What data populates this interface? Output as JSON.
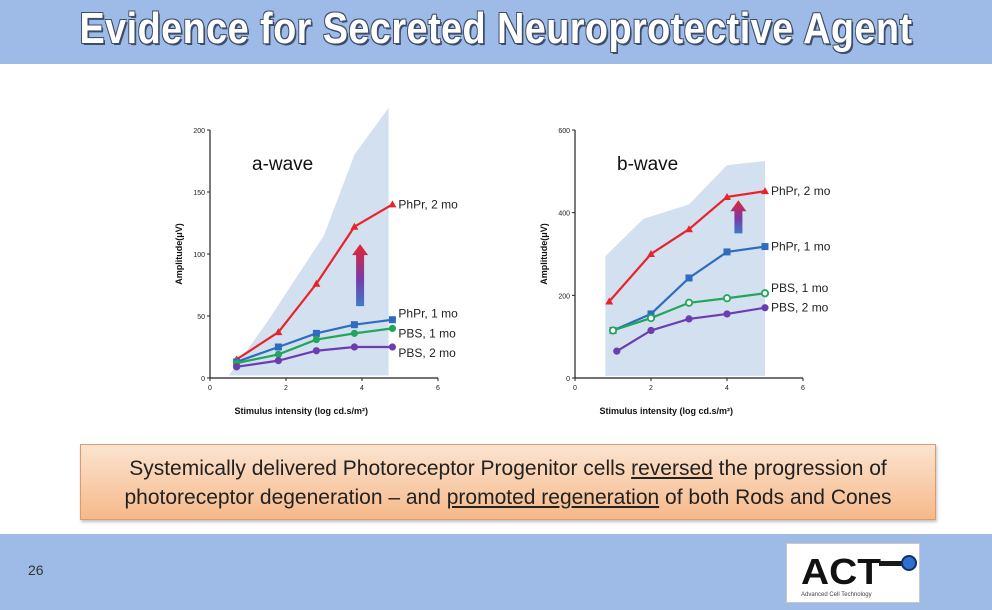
{
  "slide": {
    "title": "Evidence for Secreted Neuroprotective Agent",
    "page_number": "26",
    "caption_parts": [
      {
        "text": "Systemically delivered Photoreceptor Progenitor cells ",
        "underline": false
      },
      {
        "text": "reversed",
        "underline": true
      },
      {
        "text": " the progression of photoreceptor degeneration – and ",
        "underline": false
      },
      {
        "text": "promoted regeneration",
        "underline": true
      },
      {
        "text": " of both Rods and Cones",
        "underline": false
      }
    ],
    "logo": {
      "text": "ACT",
      "subtext": "Advanced Cell Technology"
    }
  },
  "colors": {
    "PhPr, 2 mo": "#e8232a",
    "PhPr, 1 mo": "#2e6cc0",
    "PBS, 1 mo": "#22a65a",
    "PBS, 2 mo": "#6a3db0",
    "band": "#d3e0f0"
  },
  "chart_data": [
    {
      "type": "line",
      "title": "a-wave",
      "xlabel": "Stimulus intensity (log cd.s/m²)",
      "ylabel": "Amplitude(μV)",
      "xlim": [
        0,
        6
      ],
      "ylim": [
        0,
        200
      ],
      "xticks": [
        0,
        2,
        4,
        6
      ],
      "yticks": [
        0,
        50,
        100,
        150,
        200
      ],
      "band_x": [
        0.5,
        1.5,
        3.0,
        3.8,
        4.7,
        4.7,
        3.8,
        3.0,
        1.5,
        0.5
      ],
      "band_y": [
        2,
        45,
        115,
        180,
        218,
        2,
        2,
        2,
        2,
        2
      ],
      "series": [
        {
          "name": "PhPr, 2 mo",
          "x": [
            0.7,
            1.8,
            2.8,
            3.8,
            4.8
          ],
          "y": [
            15,
            37,
            76,
            122,
            140
          ],
          "marker": "triangle"
        },
        {
          "name": "PhPr, 1 mo",
          "x": [
            0.7,
            1.8,
            2.8,
            3.8,
            4.8
          ],
          "y": [
            13,
            25,
            36,
            43,
            47
          ],
          "marker": "square"
        },
        {
          "name": "PBS, 1 mo",
          "x": [
            0.7,
            1.8,
            2.8,
            3.8,
            4.8
          ],
          "y": [
            12,
            19,
            31,
            36,
            40
          ],
          "marker": "circle"
        },
        {
          "name": "PBS, 2 mo",
          "x": [
            0.7,
            1.8,
            2.8,
            3.8,
            4.8
          ],
          "y": [
            9,
            14,
            22,
            25,
            25
          ],
          "marker": "circle"
        }
      ],
      "legend_labels": [
        "PhPr, 2 mo",
        "PhPr, 1 mo",
        "PBS, 1 mo",
        "PBS, 2 mo"
      ]
    },
    {
      "type": "line",
      "title": "b-wave",
      "xlabel": "Stimulus intensity (log cd.s/m²)",
      "ylabel": "Amplitude(μV)",
      "xlim": [
        0,
        6
      ],
      "ylim": [
        0,
        600
      ],
      "xticks": [
        0,
        2,
        4,
        6
      ],
      "yticks": [
        0,
        200,
        400,
        600
      ],
      "band_x": [
        0.8,
        1.8,
        3.0,
        4.0,
        5.0,
        5.0,
        4.0,
        3.0,
        1.8,
        0.8
      ],
      "band_y": [
        295,
        385,
        420,
        515,
        525,
        5,
        5,
        5,
        5,
        5
      ],
      "series": [
        {
          "name": "PhPr, 2 mo",
          "x": [
            0.9,
            2.0,
            3.0,
            4.0,
            5.0
          ],
          "y": [
            185,
            300,
            360,
            438,
            452
          ],
          "marker": "triangle"
        },
        {
          "name": "PhPr, 1 mo",
          "x": [
            1.0,
            2.0,
            3.0,
            4.0,
            5.0
          ],
          "y": [
            115,
            155,
            242,
            305,
            318
          ],
          "marker": "square"
        },
        {
          "name": "PBS, 1 mo",
          "x": [
            1.0,
            2.0,
            3.0,
            4.0,
            5.0
          ],
          "y": [
            115,
            145,
            182,
            193,
            205
          ],
          "marker": "circle-open"
        },
        {
          "name": "PBS, 2 mo",
          "x": [
            1.1,
            2.0,
            3.0,
            4.0,
            5.0
          ],
          "y": [
            65,
            115,
            143,
            155,
            170
          ],
          "marker": "circle"
        }
      ],
      "legend_labels": [
        "PhPr, 2 mo",
        "PhPr, 1 mo",
        "PBS, 1 mo",
        "PBS, 2 mo"
      ]
    }
  ]
}
